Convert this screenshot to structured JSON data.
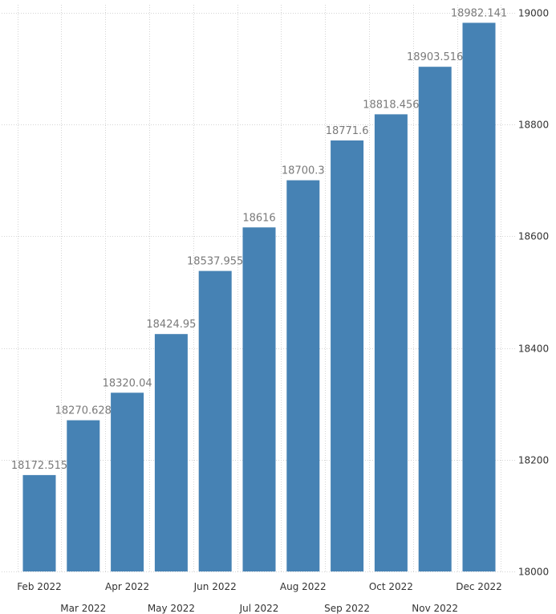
{
  "chart_data": {
    "type": "bar",
    "categories": [
      "Feb 2022",
      "Mar 2022",
      "Apr 2022",
      "May 2022",
      "Jun 2022",
      "Jul 2022",
      "Aug 2022",
      "Sep 2022",
      "Oct 2022",
      "Nov 2022",
      "Dec 2022"
    ],
    "values": [
      18172.515,
      18270.628,
      18320.04,
      18424.95,
      18537.955,
      18616,
      18700.3,
      18771.6,
      18818.456,
      18903.516,
      18982.141
    ],
    "value_labels": [
      "18172.515",
      "18270.628",
      "18320.04",
      "18424.95",
      "18537.955",
      "18616",
      "18700.3",
      "18771.6",
      "18818.456",
      "18903.516",
      "18982.141"
    ],
    "ylim": [
      18000,
      19000
    ],
    "y_ticks": [
      18000,
      18200,
      18400,
      18600,
      18800,
      19000
    ],
    "y_axis_position": "right",
    "grid": true,
    "title": "",
    "xlabel": "",
    "ylabel": "",
    "colors": {
      "bar": "#4682b4",
      "grid": "#d4d4d4",
      "label": "#7a7a7a",
      "tick": "#333333"
    }
  }
}
